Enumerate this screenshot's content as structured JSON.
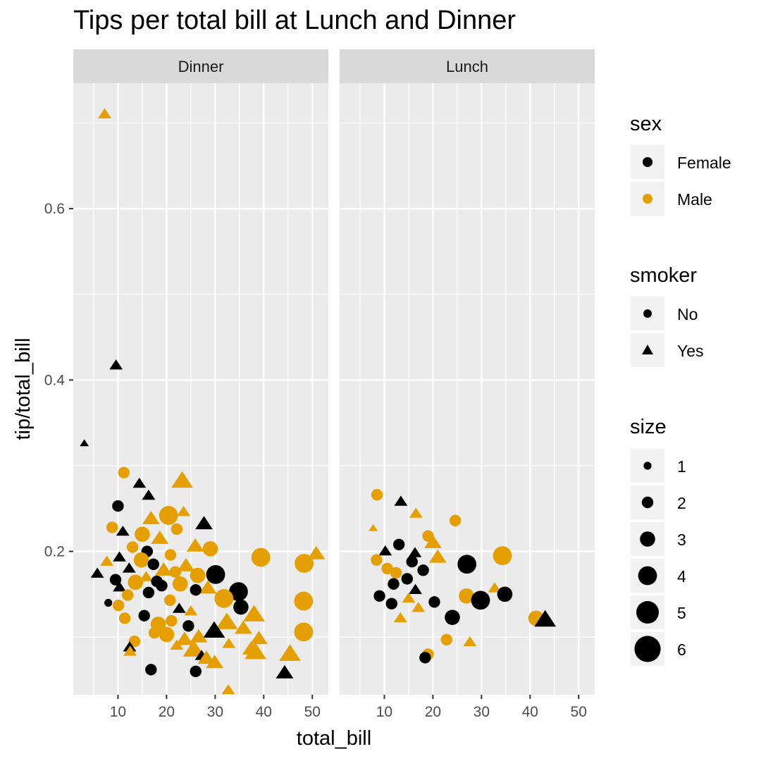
{
  "title": "Tips per total bill at Lunch and Dinner",
  "colors": {
    "Female": "#000000",
    "Male": "#E69F00",
    "panel_bg": "#EBEBEB",
    "strip_bg": "#D9D9D9",
    "grid": "#FFFFFF"
  },
  "legend": {
    "sex": {
      "title": "sex",
      "items": [
        "Female",
        "Male"
      ]
    },
    "smoker": {
      "title": "smoker",
      "items": [
        "No",
        "Yes"
      ]
    },
    "size": {
      "title": "size",
      "items": [
        "1",
        "2",
        "3",
        "4",
        "5",
        "6"
      ]
    }
  },
  "chart_data": {
    "type": "scatter",
    "xlabel": "total_bill",
    "ylabel": "tip/total_bill",
    "facets": [
      "Dinner",
      "Lunch"
    ],
    "xlim": [
      0.8,
      53.3
    ],
    "ylim": [
      0.0327,
      0.7464
    ],
    "x_ticks": [
      10,
      20,
      30,
      40,
      50
    ],
    "y_ticks": [
      0.2,
      0.4,
      0.6
    ],
    "grid": true,
    "legend_position": "right",
    "points": [
      {
        "facet": "Dinner",
        "x": 7.25,
        "y": 0.71,
        "sex": "Male",
        "smoker": "Yes",
        "size": 2
      },
      {
        "facet": "Dinner",
        "x": 9.6,
        "y": 0.417,
        "sex": "Female",
        "smoker": "Yes",
        "size": 2
      },
      {
        "facet": "Dinner",
        "x": 3.07,
        "y": 0.326,
        "sex": "Female",
        "smoker": "Yes",
        "size": 1
      },
      {
        "facet": "Dinner",
        "x": 11.2,
        "y": 0.292,
        "sex": "Male",
        "smoker": "No",
        "size": 2
      },
      {
        "facet": "Dinner",
        "x": 23.2,
        "y": 0.282,
        "sex": "Male",
        "smoker": "Yes",
        "size": 4
      },
      {
        "facet": "Dinner",
        "x": 14.4,
        "y": 0.279,
        "sex": "Female",
        "smoker": "Yes",
        "size": 2
      },
      {
        "facet": "Dinner",
        "x": 16.3,
        "y": 0.265,
        "sex": "Female",
        "smoker": "Yes",
        "size": 2
      },
      {
        "facet": "Dinner",
        "x": 10.0,
        "y": 0.253,
        "sex": "Female",
        "smoker": "No",
        "size": 2
      },
      {
        "facet": "Dinner",
        "x": 23.5,
        "y": 0.246,
        "sex": "Male",
        "smoker": "Yes",
        "size": 2
      },
      {
        "facet": "Dinner",
        "x": 20.4,
        "y": 0.242,
        "sex": "Male",
        "smoker": "No",
        "size": 4
      },
      {
        "facet": "Dinner",
        "x": 16.8,
        "y": 0.238,
        "sex": "Male",
        "smoker": "Yes",
        "size": 3
      },
      {
        "facet": "Dinner",
        "x": 27.7,
        "y": 0.232,
        "sex": "Female",
        "smoker": "Yes",
        "size": 3
      },
      {
        "facet": "Dinner",
        "x": 8.8,
        "y": 0.228,
        "sex": "Male",
        "smoker": "No",
        "size": 2
      },
      {
        "facet": "Dinner",
        "x": 22.1,
        "y": 0.226,
        "sex": "Male",
        "smoker": "No",
        "size": 2
      },
      {
        "facet": "Dinner",
        "x": 11.0,
        "y": 0.223,
        "sex": "Female",
        "smoker": "Yes",
        "size": 2
      },
      {
        "facet": "Dinner",
        "x": 15.0,
        "y": 0.22,
        "sex": "Male",
        "smoker": "No",
        "size": 3
      },
      {
        "facet": "Dinner",
        "x": 18.6,
        "y": 0.215,
        "sex": "Male",
        "smoker": "Yes",
        "size": 3
      },
      {
        "facet": "Dinner",
        "x": 25.9,
        "y": 0.206,
        "sex": "Male",
        "smoker": "Yes",
        "size": 3
      },
      {
        "facet": "Dinner",
        "x": 13.0,
        "y": 0.205,
        "sex": "Male",
        "smoker": "No",
        "size": 2
      },
      {
        "facet": "Dinner",
        "x": 50.8,
        "y": 0.197,
        "sex": "Male",
        "smoker": "Yes",
        "size": 3
      },
      {
        "facet": "Dinner",
        "x": 29.0,
        "y": 0.203,
        "sex": "Male",
        "smoker": "No",
        "size": 3
      },
      {
        "facet": "Dinner",
        "x": 16.0,
        "y": 0.2,
        "sex": "Female",
        "smoker": "No",
        "size": 2
      },
      {
        "facet": "Dinner",
        "x": 20.8,
        "y": 0.196,
        "sex": "Male",
        "smoker": "No",
        "size": 2
      },
      {
        "facet": "Dinner",
        "x": 39.4,
        "y": 0.193,
        "sex": "Male",
        "smoker": "No",
        "size": 4
      },
      {
        "facet": "Dinner",
        "x": 14.8,
        "y": 0.19,
        "sex": "Male",
        "smoker": "No",
        "size": 3
      },
      {
        "facet": "Dinner",
        "x": 7.7,
        "y": 0.188,
        "sex": "Male",
        "smoker": "Yes",
        "size": 2
      },
      {
        "facet": "Dinner",
        "x": 10.3,
        "y": 0.193,
        "sex": "Female",
        "smoker": "Yes",
        "size": 2
      },
      {
        "facet": "Dinner",
        "x": 48.3,
        "y": 0.186,
        "sex": "Male",
        "smoker": "No",
        "size": 4
      },
      {
        "facet": "Dinner",
        "x": 17.3,
        "y": 0.185,
        "sex": "Female",
        "smoker": "No",
        "size": 2
      },
      {
        "facet": "Dinner",
        "x": 24.0,
        "y": 0.183,
        "sex": "Male",
        "smoker": "Yes",
        "size": 3
      },
      {
        "facet": "Dinner",
        "x": 12.3,
        "y": 0.18,
        "sex": "Female",
        "smoker": "Yes",
        "size": 2
      },
      {
        "facet": "Dinner",
        "x": 19.4,
        "y": 0.178,
        "sex": "Male",
        "smoker": "Yes",
        "size": 3
      },
      {
        "facet": "Dinner",
        "x": 21.8,
        "y": 0.176,
        "sex": "Male",
        "smoker": "No",
        "size": 2
      },
      {
        "facet": "Dinner",
        "x": 5.75,
        "y": 0.174,
        "sex": "Female",
        "smoker": "Yes",
        "size": 2
      },
      {
        "facet": "Dinner",
        "x": 30.1,
        "y": 0.173,
        "sex": "Female",
        "smoker": "No",
        "size": 4
      },
      {
        "facet": "Dinner",
        "x": 26.4,
        "y": 0.172,
        "sex": "Male",
        "smoker": "No",
        "size": 3
      },
      {
        "facet": "Dinner",
        "x": 15.8,
        "y": 0.17,
        "sex": "Male",
        "smoker": "Yes",
        "size": 2
      },
      {
        "facet": "Dinner",
        "x": 9.5,
        "y": 0.167,
        "sex": "Female",
        "smoker": "No",
        "size": 2
      },
      {
        "facet": "Dinner",
        "x": 18.0,
        "y": 0.165,
        "sex": "Female",
        "smoker": "No",
        "size": 2
      },
      {
        "facet": "Dinner",
        "x": 13.6,
        "y": 0.164,
        "sex": "Male",
        "smoker": "No",
        "size": 3
      },
      {
        "facet": "Dinner",
        "x": 22.8,
        "y": 0.162,
        "sex": "Male",
        "smoker": "No",
        "size": 3
      },
      {
        "facet": "Dinner",
        "x": 19.0,
        "y": 0.16,
        "sex": "Female",
        "smoker": "No",
        "size": 2
      },
      {
        "facet": "Dinner",
        "x": 10.3,
        "y": 0.158,
        "sex": "Female",
        "smoker": "Yes",
        "size": 2
      },
      {
        "facet": "Dinner",
        "x": 28.5,
        "y": 0.157,
        "sex": "Male",
        "smoker": "Yes",
        "size": 3
      },
      {
        "facet": "Dinner",
        "x": 26.0,
        "y": 0.155,
        "sex": "Female",
        "smoker": "No",
        "size": 2
      },
      {
        "facet": "Dinner",
        "x": 34.8,
        "y": 0.153,
        "sex": "Female",
        "smoker": "No",
        "size": 4
      },
      {
        "facet": "Dinner",
        "x": 16.3,
        "y": 0.152,
        "sex": "Female",
        "smoker": "No",
        "size": 2
      },
      {
        "facet": "Dinner",
        "x": 12.0,
        "y": 0.149,
        "sex": "Male",
        "smoker": "No",
        "size": 2
      },
      {
        "facet": "Dinner",
        "x": 31.8,
        "y": 0.145,
        "sex": "Male",
        "smoker": "No",
        "size": 4
      },
      {
        "facet": "Dinner",
        "x": 20.7,
        "y": 0.143,
        "sex": "Male",
        "smoker": "No",
        "size": 2
      },
      {
        "facet": "Dinner",
        "x": 48.2,
        "y": 0.142,
        "sex": "Male",
        "smoker": "No",
        "size": 4
      },
      {
        "facet": "Dinner",
        "x": 8.0,
        "y": 0.14,
        "sex": "Female",
        "smoker": "No",
        "size": 1
      },
      {
        "facet": "Dinner",
        "x": 35.3,
        "y": 0.135,
        "sex": "Female",
        "smoker": "No",
        "size": 3
      },
      {
        "facet": "Dinner",
        "x": 10.1,
        "y": 0.137,
        "sex": "Male",
        "smoker": "No",
        "size": 2
      },
      {
        "facet": "Dinner",
        "x": 22.6,
        "y": 0.133,
        "sex": "Female",
        "smoker": "Yes",
        "size": 2
      },
      {
        "facet": "Dinner",
        "x": 25.0,
        "y": 0.13,
        "sex": "Male",
        "smoker": "Yes",
        "size": 2
      },
      {
        "facet": "Dinner",
        "x": 38.0,
        "y": 0.126,
        "sex": "Male",
        "smoker": "Yes",
        "size": 4
      },
      {
        "facet": "Dinner",
        "x": 15.4,
        "y": 0.125,
        "sex": "Female",
        "smoker": "No",
        "size": 2
      },
      {
        "facet": "Dinner",
        "x": 11.4,
        "y": 0.122,
        "sex": "Male",
        "smoker": "No",
        "size": 2
      },
      {
        "facet": "Dinner",
        "x": 21.0,
        "y": 0.119,
        "sex": "Male",
        "smoker": "No",
        "size": 2
      },
      {
        "facet": "Dinner",
        "x": 32.4,
        "y": 0.117,
        "sex": "Male",
        "smoker": "Yes",
        "size": 4
      },
      {
        "facet": "Dinner",
        "x": 18.3,
        "y": 0.115,
        "sex": "Male",
        "smoker": "No",
        "size": 3
      },
      {
        "facet": "Dinner",
        "x": 24.5,
        "y": 0.113,
        "sex": "Female",
        "smoker": "No",
        "size": 2
      },
      {
        "facet": "Dinner",
        "x": 35.8,
        "y": 0.11,
        "sex": "Male",
        "smoker": "Yes",
        "size": 3
      },
      {
        "facet": "Dinner",
        "x": 29.8,
        "y": 0.107,
        "sex": "Female",
        "smoker": "Yes",
        "size": 4
      },
      {
        "facet": "Dinner",
        "x": 48.2,
        "y": 0.106,
        "sex": "Male",
        "smoker": "No",
        "size": 4
      },
      {
        "facet": "Dinner",
        "x": 17.5,
        "y": 0.105,
        "sex": "Male",
        "smoker": "No",
        "size": 2
      },
      {
        "facet": "Dinner",
        "x": 20.0,
        "y": 0.103,
        "sex": "Male",
        "smoker": "No",
        "size": 3
      },
      {
        "facet": "Dinner",
        "x": 26.6,
        "y": 0.1,
        "sex": "Male",
        "smoker": "Yes",
        "size": 3
      },
      {
        "facet": "Dinner",
        "x": 39.0,
        "y": 0.098,
        "sex": "Male",
        "smoker": "Yes",
        "size": 3
      },
      {
        "facet": "Dinner",
        "x": 23.7,
        "y": 0.097,
        "sex": "Male",
        "smoker": "Yes",
        "size": 3
      },
      {
        "facet": "Dinner",
        "x": 13.4,
        "y": 0.095,
        "sex": "Male",
        "smoker": "No",
        "size": 2
      },
      {
        "facet": "Dinner",
        "x": 32.8,
        "y": 0.092,
        "sex": "Male",
        "smoker": "Yes",
        "size": 2
      },
      {
        "facet": "Dinner",
        "x": 22.1,
        "y": 0.09,
        "sex": "Male",
        "smoker": "Yes",
        "size": 2
      },
      {
        "facet": "Dinner",
        "x": 12.4,
        "y": 0.088,
        "sex": "Female",
        "smoker": "Yes",
        "size": 2
      },
      {
        "facet": "Dinner",
        "x": 37.4,
        "y": 0.086,
        "sex": "Male",
        "smoker": "Yes",
        "size": 3
      },
      {
        "facet": "Dinner",
        "x": 25.6,
        "y": 0.085,
        "sex": "Male",
        "smoker": "Yes",
        "size": 4
      },
      {
        "facet": "Dinner",
        "x": 12.5,
        "y": 0.083,
        "sex": "Male",
        "smoker": "Yes",
        "size": 2
      },
      {
        "facet": "Dinner",
        "x": 38.3,
        "y": 0.082,
        "sex": "Male",
        "smoker": "Yes",
        "size": 4
      },
      {
        "facet": "Dinner",
        "x": 45.4,
        "y": 0.08,
        "sex": "Male",
        "smoker": "Yes",
        "size": 4
      },
      {
        "facet": "Dinner",
        "x": 27.2,
        "y": 0.078,
        "sex": "Female",
        "smoker": "Yes",
        "size": 2
      },
      {
        "facet": "Dinner",
        "x": 28.2,
        "y": 0.075,
        "sex": "Male",
        "smoker": "Yes",
        "size": 3
      },
      {
        "facet": "Dinner",
        "x": 29.9,
        "y": 0.07,
        "sex": "Male",
        "smoker": "Yes",
        "size": 3
      },
      {
        "facet": "Dinner",
        "x": 16.8,
        "y": 0.062,
        "sex": "Female",
        "smoker": "No",
        "size": 2
      },
      {
        "facet": "Dinner",
        "x": 26.0,
        "y": 0.06,
        "sex": "Female",
        "smoker": "No",
        "size": 2
      },
      {
        "facet": "Dinner",
        "x": 44.3,
        "y": 0.058,
        "sex": "Female",
        "smoker": "Yes",
        "size": 3
      },
      {
        "facet": "Dinner",
        "x": 32.7,
        "y": 0.038,
        "sex": "Male",
        "smoker": "Yes",
        "size": 2
      },
      {
        "facet": "Lunch",
        "x": 8.5,
        "y": 0.266,
        "sex": "Male",
        "smoker": "No",
        "size": 2
      },
      {
        "facet": "Lunch",
        "x": 13.4,
        "y": 0.258,
        "sex": "Female",
        "smoker": "Yes",
        "size": 2
      },
      {
        "facet": "Lunch",
        "x": 16.5,
        "y": 0.244,
        "sex": "Male",
        "smoker": "Yes",
        "size": 2
      },
      {
        "facet": "Lunch",
        "x": 24.6,
        "y": 0.236,
        "sex": "Male",
        "smoker": "No",
        "size": 2
      },
      {
        "facet": "Lunch",
        "x": 7.7,
        "y": 0.227,
        "sex": "Male",
        "smoker": "Yes",
        "size": 1
      },
      {
        "facet": "Lunch",
        "x": 19.0,
        "y": 0.218,
        "sex": "Male",
        "smoker": "No",
        "size": 2
      },
      {
        "facet": "Lunch",
        "x": 20.0,
        "y": 0.21,
        "sex": "Male",
        "smoker": "Yes",
        "size": 3
      },
      {
        "facet": "Lunch",
        "x": 13.0,
        "y": 0.208,
        "sex": "Female",
        "smoker": "No",
        "size": 2
      },
      {
        "facet": "Lunch",
        "x": 10.2,
        "y": 0.2,
        "sex": "Female",
        "smoker": "Yes",
        "size": 2
      },
      {
        "facet": "Lunch",
        "x": 16.3,
        "y": 0.198,
        "sex": "Female",
        "smoker": "Yes",
        "size": 2
      },
      {
        "facet": "Lunch",
        "x": 34.3,
        "y": 0.195,
        "sex": "Male",
        "smoker": "No",
        "size": 4
      },
      {
        "facet": "Lunch",
        "x": 21.0,
        "y": 0.193,
        "sex": "Male",
        "smoker": "Yes",
        "size": 3
      },
      {
        "facet": "Lunch",
        "x": 8.4,
        "y": 0.19,
        "sex": "Male",
        "smoker": "No",
        "size": 2
      },
      {
        "facet": "Lunch",
        "x": 15.7,
        "y": 0.188,
        "sex": "Female",
        "smoker": "No",
        "size": 2
      },
      {
        "facet": "Lunch",
        "x": 27.0,
        "y": 0.185,
        "sex": "Female",
        "smoker": "No",
        "size": 4
      },
      {
        "facet": "Lunch",
        "x": 10.6,
        "y": 0.18,
        "sex": "Male",
        "smoker": "No",
        "size": 2
      },
      {
        "facet": "Lunch",
        "x": 18.0,
        "y": 0.178,
        "sex": "Female",
        "smoker": "No",
        "size": 2
      },
      {
        "facet": "Lunch",
        "x": 12.4,
        "y": 0.175,
        "sex": "Male",
        "smoker": "No",
        "size": 2
      },
      {
        "facet": "Lunch",
        "x": 14.7,
        "y": 0.168,
        "sex": "Female",
        "smoker": "No",
        "size": 2
      },
      {
        "facet": "Lunch",
        "x": 11.9,
        "y": 0.162,
        "sex": "Female",
        "smoker": "No",
        "size": 2
      },
      {
        "facet": "Lunch",
        "x": 32.7,
        "y": 0.157,
        "sex": "Male",
        "smoker": "Yes",
        "size": 2
      },
      {
        "facet": "Lunch",
        "x": 16.4,
        "y": 0.155,
        "sex": "Female",
        "smoker": "Yes",
        "size": 2
      },
      {
        "facet": "Lunch",
        "x": 34.8,
        "y": 0.15,
        "sex": "Female",
        "smoker": "No",
        "size": 3
      },
      {
        "facet": "Lunch",
        "x": 26.9,
        "y": 0.148,
        "sex": "Male",
        "smoker": "No",
        "size": 3
      },
      {
        "facet": "Lunch",
        "x": 9.0,
        "y": 0.148,
        "sex": "Female",
        "smoker": "No",
        "size": 2
      },
      {
        "facet": "Lunch",
        "x": 15.0,
        "y": 0.145,
        "sex": "Male",
        "smoker": "Yes",
        "size": 2
      },
      {
        "facet": "Lunch",
        "x": 29.8,
        "y": 0.143,
        "sex": "Female",
        "smoker": "No",
        "size": 4
      },
      {
        "facet": "Lunch",
        "x": 20.3,
        "y": 0.141,
        "sex": "Female",
        "smoker": "No",
        "size": 2
      },
      {
        "facet": "Lunch",
        "x": 11.5,
        "y": 0.139,
        "sex": "Female",
        "smoker": "No",
        "size": 2
      },
      {
        "facet": "Lunch",
        "x": 17.0,
        "y": 0.134,
        "sex": "Male",
        "smoker": "Yes",
        "size": 2
      },
      {
        "facet": "Lunch",
        "x": 41.2,
        "y": 0.122,
        "sex": "Male",
        "smoker": "No",
        "size": 3
      },
      {
        "facet": "Lunch",
        "x": 43.1,
        "y": 0.12,
        "sex": "Female",
        "smoker": "Yes",
        "size": 4
      },
      {
        "facet": "Lunch",
        "x": 13.3,
        "y": 0.122,
        "sex": "Male",
        "smoker": "Yes",
        "size": 2
      },
      {
        "facet": "Lunch",
        "x": 24.0,
        "y": 0.123,
        "sex": "Female",
        "smoker": "No",
        "size": 3
      },
      {
        "facet": "Lunch",
        "x": 22.8,
        "y": 0.097,
        "sex": "Male",
        "smoker": "No",
        "size": 2
      },
      {
        "facet": "Lunch",
        "x": 27.6,
        "y": 0.094,
        "sex": "Male",
        "smoker": "Yes",
        "size": 2
      },
      {
        "facet": "Lunch",
        "x": 19.0,
        "y": 0.08,
        "sex": "Male",
        "smoker": "No",
        "size": 2
      },
      {
        "facet": "Lunch",
        "x": 18.4,
        "y": 0.076,
        "sex": "Female",
        "smoker": "No",
        "size": 2
      }
    ]
  }
}
